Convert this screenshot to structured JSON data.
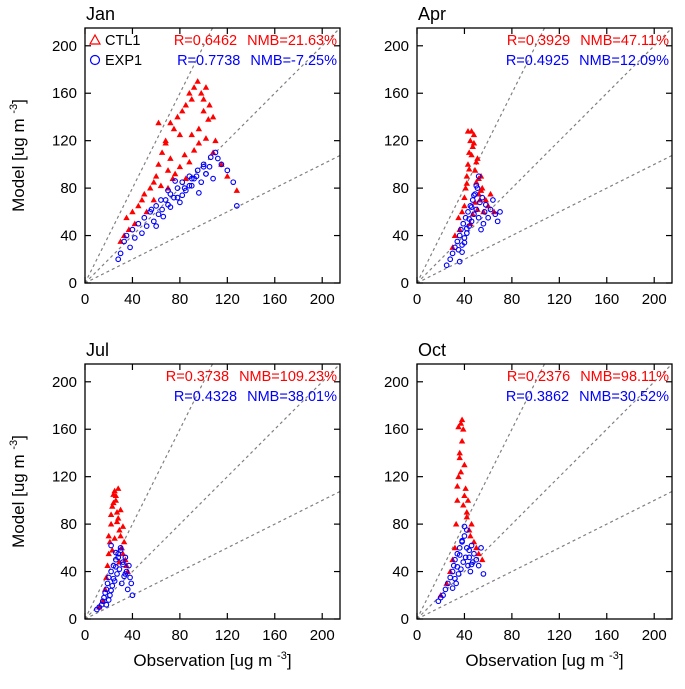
{
  "colors": {
    "ctl": "#ff0000",
    "exp": "#0000ff",
    "guide": "#808080",
    "frame": "#000000"
  },
  "chart_data": [
    {
      "type": "scatter",
      "title": "Jan",
      "xlabel": "Observation [ug m",
      "ylabel": "Model [ug m",
      "unit_exp": "-3",
      "xlim": [
        0,
        215
      ],
      "ylim": [
        0,
        215
      ],
      "xticks": [
        0,
        40,
        80,
        120,
        160,
        200
      ],
      "yticks": [
        0,
        40,
        80,
        120,
        160,
        200
      ],
      "guides": [
        0.5,
        1,
        2
      ],
      "legend": [
        {
          "name": "CTL1",
          "marker": "triangle"
        },
        {
          "name": "EXP1",
          "marker": "circle"
        }
      ],
      "stats": [
        {
          "series": "CTL1",
          "R": "R=0.6462",
          "NMB": "NMB=21.63%"
        },
        {
          "series": "EXP1",
          "R": "R=0.7738",
          "NMB": "NMB=-7.25%"
        }
      ],
      "series": [
        {
          "name": "CTL1",
          "marker": "triangle",
          "x": [
            30,
            33,
            35,
            37,
            40,
            42,
            45,
            48,
            50,
            52,
            55,
            58,
            60,
            62,
            65,
            68,
            70,
            72,
            75,
            78,
            80,
            82,
            85,
            88,
            90,
            92,
            95,
            98,
            100,
            102,
            105,
            108,
            110,
            115,
            120,
            128,
            62,
            68,
            72,
            80,
            85,
            88,
            92,
            96,
            100,
            104,
            58,
            64,
            76,
            84,
            90,
            96,
            102,
            108,
            70,
            74
          ],
          "y": [
            35,
            40,
            55,
            45,
            60,
            50,
            65,
            70,
            75,
            60,
            80,
            85,
            90,
            100,
            110,
            120,
            95,
            135,
            130,
            140,
            125,
            145,
            150,
            160,
            155,
            165,
            170,
            160,
            155,
            165,
            150,
            140,
            120,
            100,
            90,
            78,
            135,
            118,
            105,
            98,
            88,
            102,
            112,
            130,
            145,
            138,
            70,
            82,
            92,
            108,
            125,
            118,
            122,
            110,
            80,
            88
          ]
        },
        {
          "name": "EXP1",
          "marker": "circle",
          "x": [
            28,
            30,
            33,
            35,
            38,
            40,
            42,
            45,
            48,
            50,
            52,
            55,
            58,
            60,
            62,
            65,
            68,
            70,
            72,
            75,
            78,
            80,
            82,
            85,
            88,
            90,
            92,
            95,
            98,
            100,
            102,
            105,
            108,
            110,
            112,
            115,
            120,
            125,
            128,
            60,
            66,
            72,
            78,
            84,
            90,
            96,
            102,
            56,
            64,
            70,
            76,
            82,
            88,
            94,
            100,
            106
          ],
          "y": [
            20,
            25,
            35,
            40,
            30,
            45,
            38,
            50,
            42,
            55,
            48,
            60,
            52,
            65,
            58,
            62,
            70,
            66,
            75,
            72,
            80,
            68,
            85,
            78,
            90,
            82,
            88,
            95,
            85,
            100,
            92,
            98,
            88,
            110,
            105,
            100,
            95,
            85,
            65,
            48,
            56,
            64,
            72,
            80,
            88,
            76,
            92,
            62,
            70,
            78,
            86,
            74,
            82,
            90,
            98,
            106
          ]
        }
      ]
    },
    {
      "type": "scatter",
      "title": "Apr",
      "xlabel": "Observation [ug m",
      "ylabel": "Model [ug m",
      "unit_exp": "-3",
      "xlim": [
        0,
        215
      ],
      "ylim": [
        0,
        215
      ],
      "xticks": [
        0,
        40,
        80,
        120,
        160,
        200
      ],
      "yticks": [
        0,
        40,
        80,
        120,
        160,
        200
      ],
      "guides": [
        0.5,
        1,
        2
      ],
      "stats": [
        {
          "series": "CTL1",
          "R": "R=0.3929",
          "NMB": "NMB=47.11%"
        },
        {
          "series": "EXP1",
          "R": "R=0.4925",
          "NMB": "NMB=12.09%"
        }
      ],
      "series": [
        {
          "name": "CTL1",
          "marker": "triangle",
          "x": [
            30,
            32,
            35,
            36,
            38,
            40,
            41,
            42,
            43,
            44,
            45,
            46,
            47,
            48,
            49,
            50,
            51,
            52,
            53,
            54,
            55,
            56,
            58,
            60,
            62,
            65,
            40,
            42,
            44,
            46,
            48,
            50,
            52,
            54,
            45,
            47,
            49,
            51,
            43
          ],
          "y": [
            30,
            40,
            55,
            45,
            60,
            65,
            80,
            90,
            100,
            110,
            120,
            128,
            115,
            125,
            95,
            85,
            105,
            75,
            70,
            90,
            80,
            60,
            70,
            65,
            75,
            60,
            72,
            84,
            96,
            108,
            118,
            102,
            88,
            78,
            50,
            58,
            68,
            62,
            128
          ]
        },
        {
          "name": "EXP1",
          "marker": "circle",
          "x": [
            25,
            28,
            30,
            32,
            34,
            35,
            36,
            37,
            38,
            39,
            40,
            41,
            42,
            43,
            44,
            45,
            46,
            47,
            48,
            49,
            50,
            51,
            52,
            53,
            54,
            55,
            56,
            57,
            58,
            60,
            62,
            64,
            66,
            68,
            70,
            36,
            38,
            40,
            42,
            44,
            46,
            48,
            50,
            52
          ],
          "y": [
            15,
            20,
            25,
            30,
            35,
            28,
            40,
            45,
            32,
            50,
            38,
            55,
            42,
            60,
            48,
            65,
            52,
            70,
            58,
            75,
            62,
            80,
            55,
            68,
            45,
            72,
            50,
            60,
            66,
            55,
            62,
            70,
            58,
            52,
            60,
            18,
            26,
            34,
            46,
            54,
            64,
            74,
            82,
            90
          ]
        }
      ]
    },
    {
      "type": "scatter",
      "title": "Jul",
      "xlabel": "Observation [ug m",
      "ylabel": "Model [ug m",
      "unit_exp": "-3",
      "xlim": [
        0,
        215
      ],
      "ylim": [
        0,
        215
      ],
      "xticks": [
        0,
        40,
        80,
        120,
        160,
        200
      ],
      "yticks": [
        0,
        40,
        80,
        120,
        160,
        200
      ],
      "guides": [
        0.5,
        1,
        2
      ],
      "stats": [
        {
          "series": "CTL1",
          "R": "R=0.3738",
          "NMB": "NMB=109.23%"
        },
        {
          "series": "EXP1",
          "R": "R=0.4328",
          "NMB": "NMB=38.01%"
        }
      ],
      "series": [
        {
          "name": "CTL1",
          "marker": "triangle",
          "x": [
            12,
            15,
            17,
            18,
            19,
            20,
            21,
            22,
            23,
            24,
            25,
            26,
            27,
            28,
            29,
            30,
            31,
            32,
            33,
            34,
            35,
            36,
            20,
            22,
            24,
            26,
            28,
            30,
            32,
            23,
            25,
            27,
            29
          ],
          "y": [
            10,
            15,
            25,
            35,
            45,
            55,
            65,
            80,
            95,
            105,
            108,
            100,
            90,
            85,
            75,
            70,
            60,
            55,
            65,
            50,
            45,
            40,
            70,
            88,
            98,
            104,
            110,
            92,
            78,
            58,
            68,
            82,
            48
          ]
        },
        {
          "name": "EXP1",
          "marker": "circle",
          "x": [
            10,
            12,
            14,
            15,
            16,
            17,
            18,
            19,
            20,
            21,
            22,
            23,
            24,
            25,
            26,
            27,
            28,
            29,
            30,
            31,
            32,
            33,
            34,
            35,
            36,
            37,
            38,
            39,
            40,
            18,
            20,
            22,
            24,
            26,
            28,
            30,
            32,
            34,
            22,
            26
          ],
          "y": [
            8,
            10,
            12,
            15,
            18,
            22,
            25,
            30,
            35,
            20,
            40,
            28,
            45,
            32,
            50,
            38,
            55,
            42,
            60,
            30,
            48,
            36,
            52,
            40,
            25,
            45,
            35,
            30,
            20,
            12,
            16,
            24,
            34,
            44,
            52,
            58,
            46,
            38,
            62,
            56
          ]
        }
      ]
    },
    {
      "type": "scatter",
      "title": "Oct",
      "xlabel": "Observation [ug m",
      "ylabel": "Model [ug m",
      "unit_exp": "-3",
      "xlim": [
        0,
        215
      ],
      "ylim": [
        0,
        215
      ],
      "xticks": [
        0,
        40,
        80,
        120,
        160,
        200
      ],
      "yticks": [
        0,
        40,
        80,
        120,
        160,
        200
      ],
      "guides": [
        0.5,
        1,
        2
      ],
      "stats": [
        {
          "series": "CTL1",
          "R": "R=0.2376",
          "NMB": "NMB=98.11%"
        },
        {
          "series": "EXP1",
          "R": "R=0.3862",
          "NMB": "NMB=30.52%"
        }
      ],
      "series": [
        {
          "name": "CTL1",
          "marker": "triangle",
          "x": [
            20,
            25,
            28,
            30,
            32,
            33,
            34,
            35,
            36,
            37,
            38,
            39,
            40,
            41,
            42,
            43,
            44,
            45,
            46,
            48,
            50,
            52,
            55,
            34,
            36,
            38,
            40,
            42,
            35,
            37,
            39
          ],
          "y": [
            20,
            30,
            40,
            50,
            60,
            80,
            100,
            120,
            140,
            165,
            168,
            160,
            130,
            110,
            90,
            100,
            75,
            70,
            80,
            65,
            60,
            55,
            50,
            112,
            136,
            150,
            104,
            86,
            162,
            124,
            96
          ]
        },
        {
          "name": "EXP1",
          "marker": "circle",
          "x": [
            18,
            20,
            22,
            24,
            26,
            28,
            30,
            31,
            32,
            33,
            34,
            35,
            36,
            37,
            38,
            39,
            40,
            41,
            42,
            43,
            44,
            45,
            46,
            47,
            48,
            50,
            52,
            54,
            56,
            30,
            32,
            34,
            36,
            38,
            40,
            42,
            44,
            46
          ],
          "y": [
            15,
            18,
            20,
            25,
            30,
            35,
            40,
            45,
            50,
            30,
            55,
            38,
            60,
            42,
            65,
            48,
            70,
            52,
            75,
            45,
            58,
            40,
            62,
            48,
            55,
            50,
            45,
            60,
            38,
            26,
            34,
            44,
            54,
            66,
            78,
            60,
            52,
            46
          ]
        }
      ]
    }
  ]
}
